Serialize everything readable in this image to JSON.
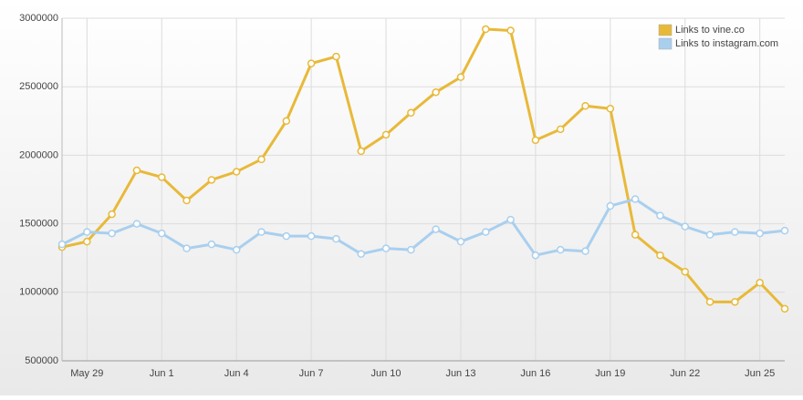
{
  "chart_data": {
    "type": "line",
    "categories": [
      null,
      "May 29",
      null,
      null,
      "Jun 1",
      null,
      null,
      "Jun 4",
      null,
      null,
      "Jun 7",
      null,
      null,
      "Jun 10",
      null,
      null,
      "Jun 13",
      null,
      null,
      "Jun 16",
      null,
      null,
      "Jun 19",
      null,
      null,
      "Jun 22",
      null,
      null,
      "Jun 25",
      null
    ],
    "series": [
      {
        "name": "Links to vine.co",
        "color": "#e8b939",
        "values": [
          1330000,
          1370000,
          1570000,
          1890000,
          1840000,
          1670000,
          1820000,
          1880000,
          1970000,
          2250000,
          2670000,
          2720000,
          2030000,
          2150000,
          2310000,
          2460000,
          2570000,
          2920000,
          2910000,
          2110000,
          2190000,
          2360000,
          2340000,
          1420000,
          1270000,
          1150000,
          930000,
          930000,
          1070000,
          880000
        ]
      },
      {
        "name": "Links to instagram.com",
        "color": "#a9cfee",
        "values": [
          1350000,
          1440000,
          1430000,
          1500000,
          1430000,
          1320000,
          1350000,
          1310000,
          1440000,
          1410000,
          1410000,
          1390000,
          1280000,
          1320000,
          1310000,
          1460000,
          1370000,
          1440000,
          1530000,
          1270000,
          1310000,
          1300000,
          1630000,
          1680000,
          1560000,
          1480000,
          1420000,
          1440000,
          1430000,
          1450000
        ]
      }
    ],
    "ylim": [
      500000,
      3000000
    ],
    "yticks": [
      500000,
      1000000,
      1500000,
      2000000,
      2500000,
      3000000
    ],
    "grid": true,
    "legend": "top-right"
  }
}
